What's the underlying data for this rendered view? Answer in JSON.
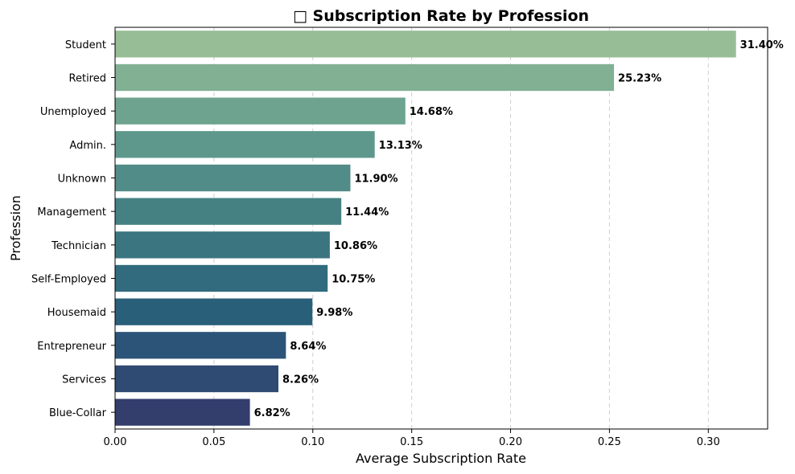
{
  "chart_data": {
    "type": "bar",
    "orientation": "horizontal",
    "title": "□ Subscription Rate by Profession",
    "xlabel": "Average Subscription Rate",
    "ylabel": "Profession",
    "xlim": [
      0.0,
      0.33
    ],
    "xticks": [
      0.0,
      0.05,
      0.1,
      0.15,
      0.2,
      0.25,
      0.3
    ],
    "xtick_labels": [
      "0.00",
      "0.05",
      "0.10",
      "0.15",
      "0.20",
      "0.25",
      "0.30"
    ],
    "grid": "x-dashed",
    "categories": [
      "Student",
      "Retired",
      "Unemployed",
      "Admin.",
      "Unknown",
      "Management",
      "Technician",
      "Self-Employed",
      "Housemaid",
      "Entrepreneur",
      "Services",
      "Blue-Collar"
    ],
    "values": [
      0.314,
      0.2523,
      0.1468,
      0.1313,
      0.119,
      0.1144,
      0.1086,
      0.1075,
      0.0998,
      0.0864,
      0.0826,
      0.0682
    ],
    "data_labels": [
      "31.40%",
      "25.23%",
      "14.68%",
      "13.13%",
      "11.90%",
      "11.44%",
      "10.86%",
      "10.75%",
      "9.98%",
      "8.64%",
      "8.26%",
      "6.82%"
    ],
    "colors": [
      "#97bd96",
      "#81b093",
      "#6da38f",
      "#5e988c",
      "#528c88",
      "#458183",
      "#3b7680",
      "#316b7d",
      "#2a5f79",
      "#2c5478",
      "#2f4a73",
      "#333e6d"
    ]
  }
}
